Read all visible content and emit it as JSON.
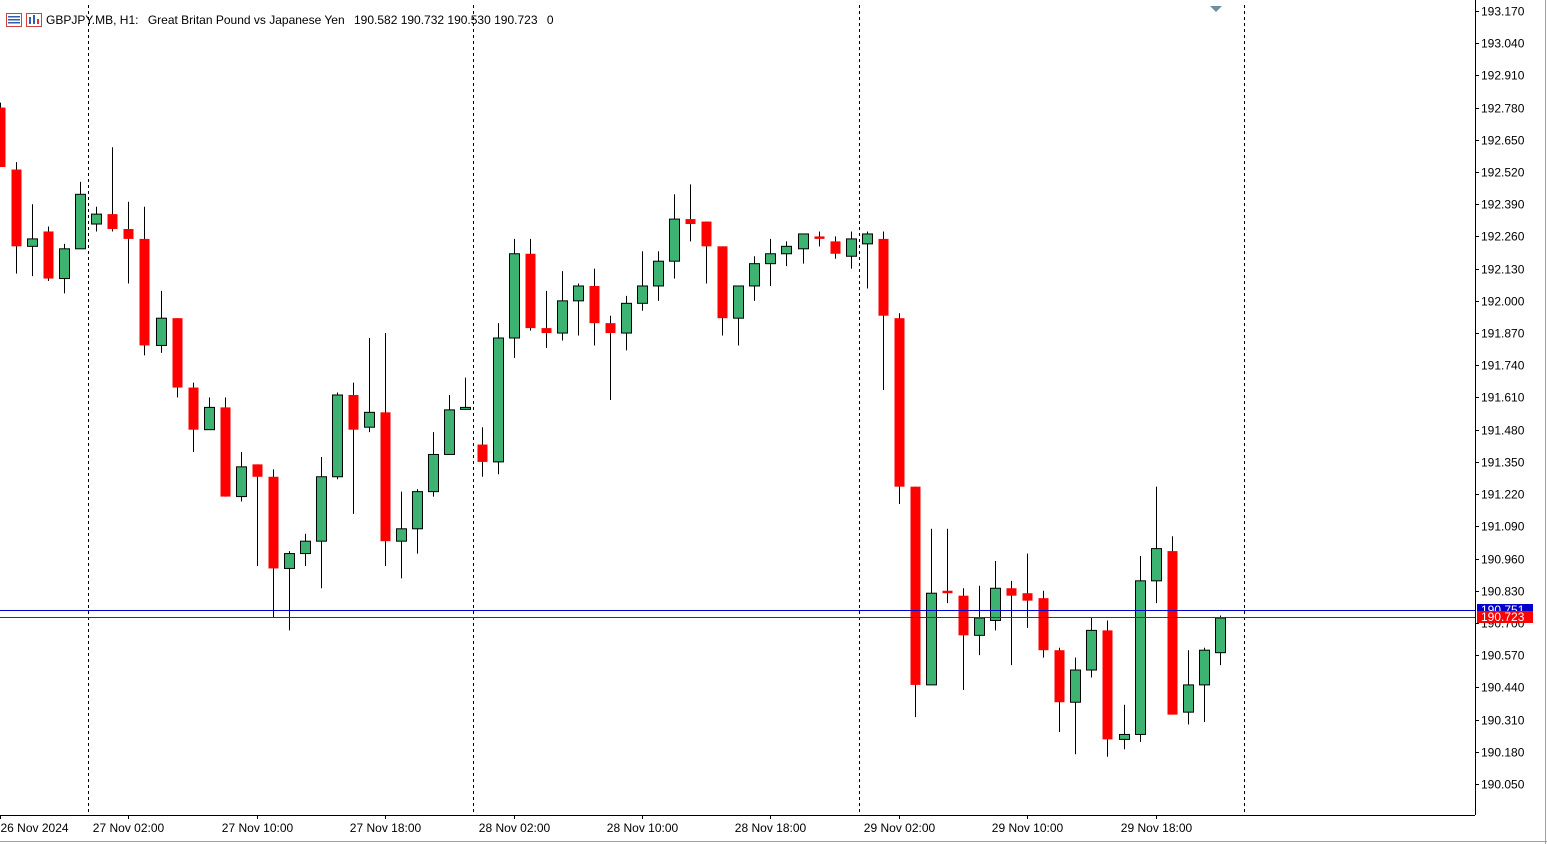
{
  "header": {
    "symbol": "GBPJPY.MB, H1:",
    "description": "Great Britan Pound vs Japanese Yen",
    "ohlc": "190.582 190.732 190.530 190.723",
    "volume": "0",
    "icons": [
      "list-icon",
      "chart-window-icon"
    ]
  },
  "colors": {
    "bull": "#3cb371",
    "bear": "#ff0000",
    "ask_line": "#0000cd",
    "bid_line": "#c00000",
    "axis": "#000000",
    "separator": "#000000"
  },
  "chart_data": {
    "type": "candlestick",
    "symbol": "GBPJPY.MB",
    "timeframe": "H1",
    "ylim": [
      189.99,
      193.19
    ],
    "y_ticks": [
      "193.170",
      "193.040",
      "192.910",
      "192.780",
      "192.650",
      "192.520",
      "192.390",
      "192.260",
      "192.130",
      "192.000",
      "191.870",
      "191.740",
      "191.610",
      "191.480",
      "191.350",
      "191.220",
      "191.090",
      "190.960",
      "190.830",
      "190.700",
      "190.570",
      "190.440",
      "190.310",
      "190.180",
      "190.050"
    ],
    "x_labels": [
      "26 Nov 2024",
      "27 Nov 02:00",
      "27 Nov 10:00",
      "27 Nov 18:00",
      "28 Nov 02:00",
      "28 Nov 10:00",
      "28 Nov 18:00",
      "29 Nov 02:00",
      "29 Nov 10:00",
      "29 Nov 18:00"
    ],
    "day_separators": [
      "27 Nov 2024",
      "28 Nov 2024",
      "29 Nov 2024",
      "30 Nov 2024"
    ],
    "ask_price": "190.751",
    "bid_price": "190.723",
    "ask_value": 190.751,
    "bid_value": 190.723,
    "candles": [
      {
        "o": 192.78,
        "h": 192.8,
        "l": 192.54,
        "c": 192.54
      },
      {
        "o": 192.53,
        "h": 192.56,
        "l": 192.11,
        "c": 192.22
      },
      {
        "o": 192.22,
        "h": 192.39,
        "l": 192.1,
        "c": 192.25
      },
      {
        "o": 192.28,
        "h": 192.3,
        "l": 192.08,
        "c": 192.09
      },
      {
        "o": 192.09,
        "h": 192.23,
        "l": 192.03,
        "c": 192.21
      },
      {
        "o": 192.21,
        "h": 192.48,
        "l": 192.21,
        "c": 192.43
      },
      {
        "o": 192.31,
        "h": 192.38,
        "l": 192.28,
        "c": 192.35
      },
      {
        "o": 192.35,
        "h": 192.62,
        "l": 192.28,
        "c": 192.29
      },
      {
        "o": 192.29,
        "h": 192.4,
        "l": 192.07,
        "c": 192.25
      },
      {
        "o": 192.25,
        "h": 192.38,
        "l": 191.78,
        "c": 191.82
      },
      {
        "o": 191.82,
        "h": 192.04,
        "l": 191.79,
        "c": 191.93
      },
      {
        "o": 191.93,
        "h": 191.93,
        "l": 191.61,
        "c": 191.65
      },
      {
        "o": 191.65,
        "h": 191.67,
        "l": 191.39,
        "c": 191.48
      },
      {
        "o": 191.48,
        "h": 191.61,
        "l": 191.48,
        "c": 191.57
      },
      {
        "o": 191.57,
        "h": 191.61,
        "l": 191.21,
        "c": 191.21
      },
      {
        "o": 191.21,
        "h": 191.39,
        "l": 191.19,
        "c": 191.33
      },
      {
        "o": 191.34,
        "h": 191.34,
        "l": 190.93,
        "c": 191.29
      },
      {
        "o": 191.29,
        "h": 191.32,
        "l": 190.72,
        "c": 190.92
      },
      {
        "o": 190.92,
        "h": 190.99,
        "l": 190.67,
        "c": 190.98
      },
      {
        "o": 190.98,
        "h": 191.06,
        "l": 190.93,
        "c": 191.03
      },
      {
        "o": 191.03,
        "h": 191.37,
        "l": 190.84,
        "c": 191.29
      },
      {
        "o": 191.29,
        "h": 191.63,
        "l": 191.28,
        "c": 191.62
      },
      {
        "o": 191.62,
        "h": 191.67,
        "l": 191.14,
        "c": 191.48
      },
      {
        "o": 191.49,
        "h": 191.85,
        "l": 191.47,
        "c": 191.55
      },
      {
        "o": 191.55,
        "h": 191.87,
        "l": 190.93,
        "c": 191.03
      },
      {
        "o": 191.03,
        "h": 191.23,
        "l": 190.88,
        "c": 191.08
      },
      {
        "o": 191.08,
        "h": 191.24,
        "l": 190.98,
        "c": 191.23
      },
      {
        "o": 191.23,
        "h": 191.47,
        "l": 191.21,
        "c": 191.38
      },
      {
        "o": 191.38,
        "h": 191.62,
        "l": 191.38,
        "c": 191.56
      },
      {
        "o": 191.57,
        "h": 191.69,
        "l": 191.56,
        "c": 191.57
      },
      {
        "o": 191.42,
        "h": 191.49,
        "l": 191.29,
        "c": 191.35
      },
      {
        "o": 191.35,
        "h": 191.91,
        "l": 191.3,
        "c": 191.85
      },
      {
        "o": 191.85,
        "h": 192.25,
        "l": 191.77,
        "c": 192.19
      },
      {
        "o": 192.19,
        "h": 192.25,
        "l": 191.88,
        "c": 191.89
      },
      {
        "o": 191.89,
        "h": 192.04,
        "l": 191.81,
        "c": 191.87
      },
      {
        "o": 191.87,
        "h": 192.12,
        "l": 191.84,
        "c": 192.0
      },
      {
        "o": 192.0,
        "h": 192.07,
        "l": 191.86,
        "c": 192.06
      },
      {
        "o": 192.06,
        "h": 192.13,
        "l": 191.82,
        "c": 191.91
      },
      {
        "o": 191.91,
        "h": 191.94,
        "l": 191.6,
        "c": 191.87
      },
      {
        "o": 191.87,
        "h": 192.02,
        "l": 191.8,
        "c": 191.99
      },
      {
        "o": 191.99,
        "h": 192.2,
        "l": 191.96,
        "c": 192.06
      },
      {
        "o": 192.06,
        "h": 192.2,
        "l": 192.0,
        "c": 192.16
      },
      {
        "o": 192.16,
        "h": 192.43,
        "l": 192.09,
        "c": 192.33
      },
      {
        "o": 192.33,
        "h": 192.47,
        "l": 192.24,
        "c": 192.31
      },
      {
        "o": 192.32,
        "h": 192.32,
        "l": 192.07,
        "c": 192.22
      },
      {
        "o": 192.22,
        "h": 192.22,
        "l": 191.86,
        "c": 191.93
      },
      {
        "o": 191.93,
        "h": 192.05,
        "l": 191.82,
        "c": 192.06
      },
      {
        "o": 192.06,
        "h": 192.18,
        "l": 192.0,
        "c": 192.15
      },
      {
        "o": 192.15,
        "h": 192.25,
        "l": 192.06,
        "c": 192.19
      },
      {
        "o": 192.19,
        "h": 192.24,
        "l": 192.14,
        "c": 192.22
      },
      {
        "o": 192.21,
        "h": 192.27,
        "l": 192.15,
        "c": 192.27
      },
      {
        "o": 192.26,
        "h": 192.28,
        "l": 192.22,
        "c": 192.25
      },
      {
        "o": 192.24,
        "h": 192.26,
        "l": 192.17,
        "c": 192.19
      },
      {
        "o": 192.18,
        "h": 192.28,
        "l": 192.13,
        "c": 192.25
      },
      {
        "o": 192.23,
        "h": 192.28,
        "l": 192.05,
        "c": 192.27
      },
      {
        "o": 192.25,
        "h": 192.28,
        "l": 191.64,
        "c": 191.94
      },
      {
        "o": 191.93,
        "h": 191.95,
        "l": 191.18,
        "c": 191.25
      },
      {
        "o": 191.25,
        "h": 191.25,
        "l": 190.32,
        "c": 190.45
      },
      {
        "o": 190.45,
        "h": 191.08,
        "l": 190.45,
        "c": 190.82
      },
      {
        "o": 190.83,
        "h": 191.08,
        "l": 190.78,
        "c": 190.82
      },
      {
        "o": 190.81,
        "h": 190.84,
        "l": 190.43,
        "c": 190.65
      },
      {
        "o": 190.65,
        "h": 190.85,
        "l": 190.57,
        "c": 190.72
      },
      {
        "o": 190.71,
        "h": 190.95,
        "l": 190.67,
        "c": 190.84
      },
      {
        "o": 190.84,
        "h": 190.87,
        "l": 190.53,
        "c": 190.81
      },
      {
        "o": 190.82,
        "h": 190.98,
        "l": 190.68,
        "c": 190.79
      },
      {
        "o": 190.8,
        "h": 190.83,
        "l": 190.56,
        "c": 190.59
      },
      {
        "o": 190.59,
        "h": 190.6,
        "l": 190.26,
        "c": 190.38
      },
      {
        "o": 190.38,
        "h": 190.56,
        "l": 190.17,
        "c": 190.51
      },
      {
        "o": 190.51,
        "h": 190.72,
        "l": 190.48,
        "c": 190.67
      },
      {
        "o": 190.67,
        "h": 190.71,
        "l": 190.16,
        "c": 190.23
      },
      {
        "o": 190.23,
        "h": 190.37,
        "l": 190.19,
        "c": 190.25
      },
      {
        "o": 190.25,
        "h": 190.97,
        "l": 190.22,
        "c": 190.87
      },
      {
        "o": 190.87,
        "h": 191.25,
        "l": 190.78,
        "c": 191.0
      },
      {
        "o": 190.99,
        "h": 191.05,
        "l": 190.33,
        "c": 190.33
      },
      {
        "o": 190.34,
        "h": 190.59,
        "l": 190.29,
        "c": 190.45
      },
      {
        "o": 190.45,
        "h": 190.6,
        "l": 190.3,
        "c": 190.59
      },
      {
        "o": 190.58,
        "h": 190.73,
        "l": 190.53,
        "c": 190.72
      }
    ]
  }
}
